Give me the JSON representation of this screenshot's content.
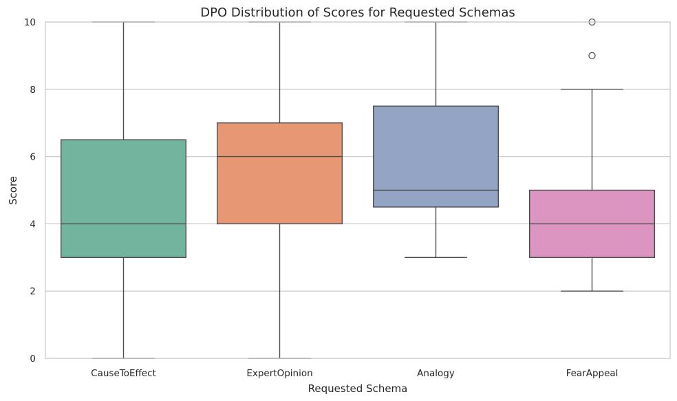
{
  "chart_data": {
    "type": "box",
    "title": "DPO Distribution of Scores for Requested Schemas",
    "xlabel": "Requested Schema",
    "ylabel": "Score",
    "ylim": [
      0,
      10
    ],
    "yticks": [
      "0",
      "2",
      "4",
      "6",
      "8",
      "10"
    ],
    "grid": "horizontal",
    "categories": [
      "CauseToEffect",
      "ExpertOpinion",
      "Analogy",
      "FearAppeal"
    ],
    "boxes": [
      {
        "category": "CauseToEffect",
        "whisker_low": 0,
        "q1": 3,
        "median": 4,
        "q3": 6.5,
        "whisker_high": 10,
        "outliers": [],
        "color": "#72b59e"
      },
      {
        "category": "ExpertOpinion",
        "whisker_low": 0,
        "q1": 4,
        "median": 6,
        "q3": 7,
        "whisker_high": 10,
        "outliers": [],
        "color": "#e89773"
      },
      {
        "category": "Analogy",
        "whisker_low": 3,
        "q1": 4.5,
        "median": 5,
        "q3": 7.5,
        "whisker_high": 10,
        "outliers": [],
        "color": "#94a4c4"
      },
      {
        "category": "FearAppeal",
        "whisker_low": 2,
        "q1": 3,
        "median": 4,
        "q3": 5,
        "whisker_high": 8,
        "outliers": [
          9,
          10
        ],
        "color": "#dc95c0"
      }
    ],
    "colors": {
      "grid": "#cccccc",
      "line": "#4d4d4d",
      "frame": "#cccccc",
      "text": "#262626"
    }
  }
}
